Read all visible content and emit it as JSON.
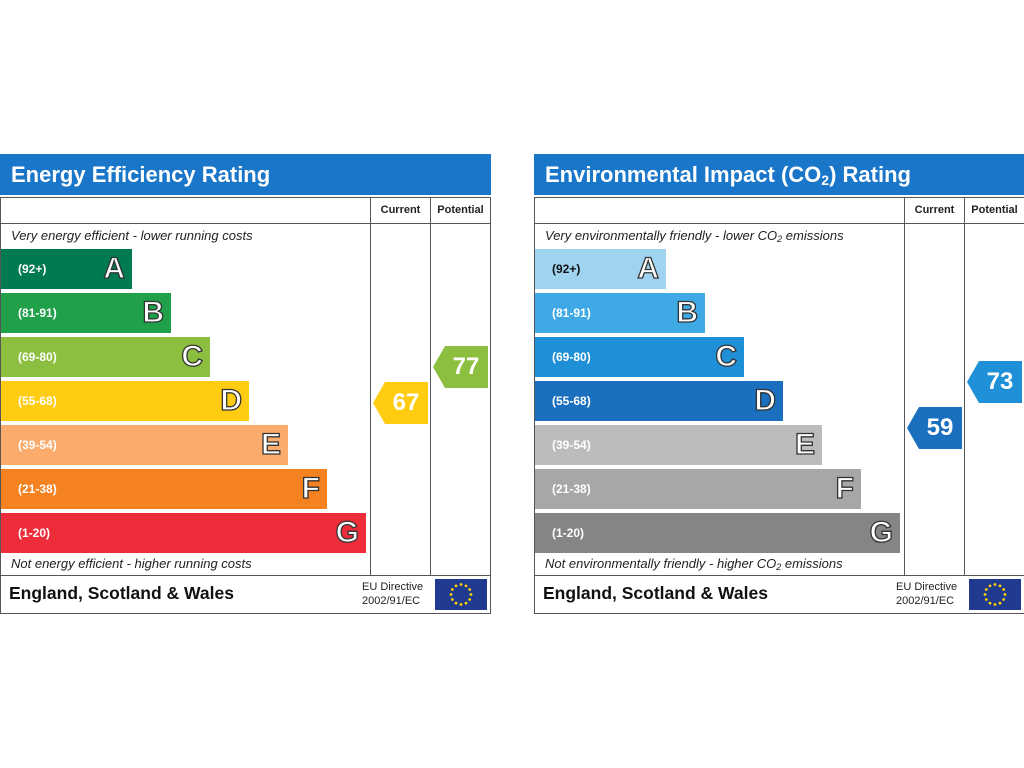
{
  "chart_data": [
    {
      "type": "bar",
      "title": "Energy Efficiency Rating",
      "columns": [
        "Current",
        "Potential"
      ],
      "top_note": "Very energy efficient - lower running costs",
      "bottom_note": "Not energy efficient - higher running costs",
      "bands": [
        {
          "range": "(92+)",
          "letter": "A",
          "color": "#007a53"
        },
        {
          "range": "(81-91)",
          "letter": "B",
          "color": "#1fa049"
        },
        {
          "range": "(69-80)",
          "letter": "C",
          "color": "#8cbf3f"
        },
        {
          "range": "(55-68)",
          "letter": "D",
          "color": "#ffcc11"
        },
        {
          "range": "(39-54)",
          "letter": "E",
          "color": "#fbac6c"
        },
        {
          "range": "(21-38)",
          "letter": "F",
          "color": "#f58220"
        },
        {
          "range": "(1-20)",
          "letter": "G",
          "color": "#ee2d3a"
        }
      ],
      "current": {
        "value": 67,
        "band": "D",
        "color": "#ffcc11"
      },
      "potential": {
        "value": 77,
        "band": "C",
        "color": "#8cbf3f"
      },
      "footer": {
        "region": "England, Scotland & Wales",
        "directive_line1": "EU Directive",
        "directive_line2": "2002/91/EC"
      }
    },
    {
      "type": "bar",
      "title_main": "Environmental Impact (CO",
      "title_sub": "2",
      "title_end": ") Rating",
      "columns": [
        "Current",
        "Potential"
      ],
      "top_note_main": "Very environmentally friendly - lower CO",
      "top_note_sub": "2",
      "top_note_end": " emissions",
      "bottom_note_main": "Not environmentally friendly - higher CO",
      "bottom_note_sub": "2",
      "bottom_note_end": " emissions",
      "bands": [
        {
          "range": "(92+)",
          "letter": "A",
          "color": "#9fd3f0",
          "dark_range": true
        },
        {
          "range": "(81-91)",
          "letter": "B",
          "color": "#3ea9e4"
        },
        {
          "range": "(69-80)",
          "letter": "C",
          "color": "#1f8fd7"
        },
        {
          "range": "(55-68)",
          "letter": "D",
          "color": "#1a6fbe"
        },
        {
          "range": "(39-54)",
          "letter": "E",
          "color": "#bdbcbd"
        },
        {
          "range": "(21-38)",
          "letter": "F",
          "color": "#a7a6a8"
        },
        {
          "range": "(1-20)",
          "letter": "G",
          "color": "#858487"
        }
      ],
      "current": {
        "value": 59,
        "band": "D",
        "color": "#1a6fbe"
      },
      "potential": {
        "value": 73,
        "band": "C",
        "color": "#1f8fd7"
      },
      "footer": {
        "region": "England, Scotland & Wales",
        "directive_line1": "EU Directive",
        "directive_line2": "2002/91/EC"
      }
    }
  ],
  "icons": {
    "eu_flag": "eu-flag-icon"
  }
}
